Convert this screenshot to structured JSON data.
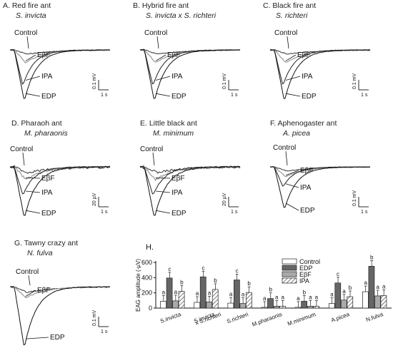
{
  "panels": [
    {
      "id": "A",
      "title": "A.  Red fire ant",
      "subtitle": "S. invicta",
      "labels": [
        "Control",
        "EβF",
        "IPA",
        "EDP"
      ],
      "scale_v": "0.1 mV",
      "scale_t": "1 s"
    },
    {
      "id": "B",
      "title": "B. Hybrid fire ant",
      "subtitle": "S. invicta x S. richteri",
      "labels": [
        "Control",
        "EβF",
        "IPA",
        "EDP"
      ],
      "scale_v": "0.1 mV",
      "scale_t": "1 s"
    },
    {
      "id": "C",
      "title": "C. Black fire ant",
      "subtitle": "S. richteri",
      "labels": [
        "Control",
        "EβF",
        "IPA",
        "EDP"
      ],
      "scale_v": "0.1 mV",
      "scale_t": "1 s"
    },
    {
      "id": "D",
      "title": "D. Pharaoh ant",
      "subtitle": "M. pharaonis",
      "labels": [
        "Control",
        "EβF",
        "IPA",
        "EDP"
      ],
      "scale_v": "20 µV",
      "scale_t": "1 s"
    },
    {
      "id": "E",
      "title": "E. Little black ant",
      "subtitle": "M. minimum",
      "labels": [
        "Control",
        "EβF",
        "IPA",
        "EDP"
      ],
      "scale_v": "20 µV",
      "scale_t": "1 s"
    },
    {
      "id": "F",
      "title": "F. Aphenogaster ant",
      "subtitle": "A. picea",
      "labels": [
        "Control",
        "EβF",
        "IPA",
        "EDP"
      ],
      "scale_v": "0.1 mV",
      "scale_t": "1 s"
    },
    {
      "id": "G",
      "title": "G. Tawny crazy ant",
      "subtitle": "N. fulva",
      "labels": [
        "Control",
        "EβF",
        "EDP"
      ],
      "scale_v": "0.1 mV",
      "scale_t": "1 s"
    }
  ],
  "chart_data": {
    "type": "bar",
    "title": "H.",
    "ylabel": "EAG amplitude (-µV)",
    "xlabel": "",
    "ylim": [
      0,
      600
    ],
    "yticks": [
      0,
      200,
      400,
      600
    ],
    "grid": false,
    "legend_position": "top-right",
    "categories": [
      "S.invicta",
      "S.invicta\nx S.richteri",
      "S.richteri",
      "M.pharaonis",
      "M.minimum",
      "A.picea",
      "N.fulva"
    ],
    "series": [
      {
        "name": "Control",
        "color": "#ffffff",
        "pattern": "none",
        "values": [
          90,
          75,
          65,
          10,
          10,
          60,
          215
        ]
      },
      {
        "name": "EDP",
        "color": "#666666",
        "pattern": "none",
        "values": [
          395,
          410,
          370,
          125,
          90,
          330,
          550
        ]
      },
      {
        "name": "EβF",
        "color": "#aaaaaa",
        "pattern": "none",
        "values": [
          95,
          80,
          60,
          25,
          25,
          105,
          160
        ]
      },
      {
        "name": "IPA",
        "color": "#ffffff",
        "pattern": "hatch",
        "values": [
          220,
          245,
          205,
          25,
          25,
          150,
          165
        ]
      }
    ],
    "letters": [
      [
        "a",
        "c",
        "a",
        "b"
      ],
      [
        "a",
        "c",
        "a",
        "b"
      ],
      [
        "a",
        "c",
        "a",
        "b"
      ],
      [
        "a",
        "b",
        "a",
        "a"
      ],
      [
        "a",
        "b",
        "a",
        "a"
      ],
      [
        "a",
        "c",
        "a",
        "b"
      ],
      [
        "a",
        "b",
        "a",
        "a"
      ]
    ]
  }
}
